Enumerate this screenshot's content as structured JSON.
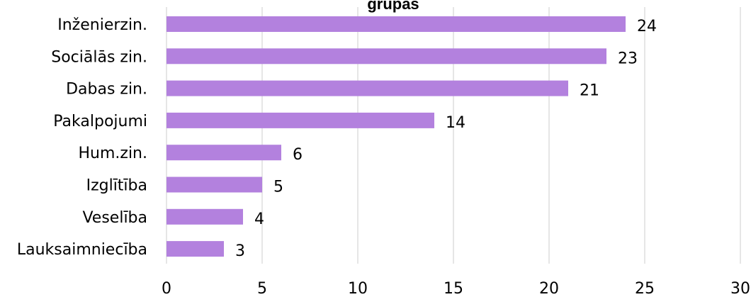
{
  "chart_data": {
    "type": "bar",
    "orientation": "horizontal",
    "title": "grupas",
    "categories": [
      "Inženierzin.",
      "Sociālās zin.",
      "Dabas zin.",
      "Pakalpojumi",
      "Hum.zin.",
      "Izglītība",
      "Veselība",
      "Lauksaimniecība"
    ],
    "values": [
      24,
      23,
      21,
      14,
      6,
      5,
      4,
      3
    ],
    "xlim": [
      0,
      30
    ],
    "xticks": [
      0,
      5,
      10,
      15,
      20,
      25,
      30
    ],
    "grid": true,
    "data_labels": true,
    "bar_color": "#b381de",
    "xlabel": "",
    "ylabel": ""
  }
}
